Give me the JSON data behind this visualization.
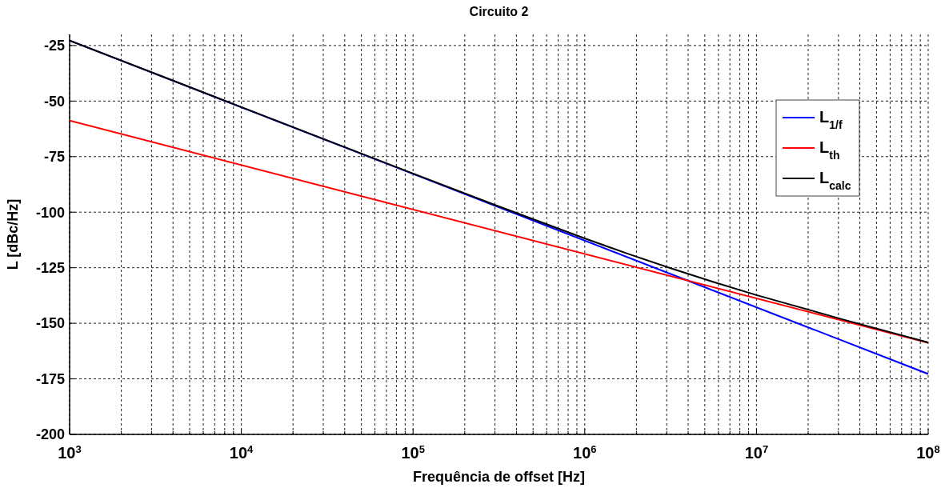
{
  "chart_data": {
    "type": "line",
    "title": "Circuito 2",
    "xlabel": "Frequência de offset [Hz]",
    "ylabel": "L [dBc/Hz]",
    "log": "x",
    "grid": true,
    "legend": "top right",
    "line_style": "solid",
    "xlim": [
      1000,
      100000000
    ],
    "ylim": [
      -200,
      -20
    ],
    "xticks": [
      {
        "value": 1000,
        "label": "10$^{3}$"
      },
      {
        "value": 2000,
        "label": null
      },
      {
        "value": 3000,
        "label": null
      },
      {
        "value": 4000,
        "label": null
      },
      {
        "value": 5000,
        "label": null
      },
      {
        "value": 6000,
        "label": null
      },
      {
        "value": 7000,
        "label": null
      },
      {
        "value": 8000,
        "label": null
      },
      {
        "value": 9000,
        "label": null
      },
      {
        "value": 10000,
        "label": "10$^{4}$"
      },
      {
        "value": 20000,
        "label": null
      },
      {
        "value": 30000,
        "label": null
      },
      {
        "value": 40000,
        "label": null
      },
      {
        "value": 50000,
        "label": null
      },
      {
        "value": 60000,
        "label": null
      },
      {
        "value": 70000,
        "label": null
      },
      {
        "value": 80000,
        "label": null
      },
      {
        "value": 90000,
        "label": null
      },
      {
        "value": 100000,
        "label": "10$^{5}$"
      },
      {
        "value": 200000,
        "label": null
      },
      {
        "value": 300000,
        "label": null
      },
      {
        "value": 400000,
        "label": null
      },
      {
        "value": 500000,
        "label": null
      },
      {
        "value": 600000,
        "label": null
      },
      {
        "value": 700000,
        "label": null
      },
      {
        "value": 800000,
        "label": null
      },
      {
        "value": 900000,
        "label": null
      },
      {
        "value": 1000000,
        "label": "10$^{6}$"
      },
      {
        "value": 2000000,
        "label": null
      },
      {
        "value": 3000000,
        "label": null
      },
      {
        "value": 4000000,
        "label": null
      },
      {
        "value": 5000000,
        "label": null
      },
      {
        "value": 6000000,
        "label": null
      },
      {
        "value": 7000000,
        "label": null
      },
      {
        "value": 8000000,
        "label": null
      },
      {
        "value": 9000000,
        "label": null
      },
      {
        "value": 10000000,
        "label": "10$^{7}$"
      },
      {
        "value": 20000000,
        "label": null
      },
      {
        "value": 30000000,
        "label": null
      },
      {
        "value": 40000000,
        "label": null
      },
      {
        "value": 50000000,
        "label": null
      },
      {
        "value": 60000000,
        "label": null
      },
      {
        "value": 70000000,
        "label": null
      },
      {
        "value": 80000000,
        "label": null
      },
      {
        "value": 90000000,
        "label": null
      },
      {
        "value": 100000000,
        "label": "10$^{8}$"
      }
    ],
    "yticks": [
      -200,
      -175,
      -150,
      -125,
      -100,
      -75,
      -50,
      -25
    ],
    "series": [
      {
        "name": "L$_{1/f}$",
        "color": "#0000ff",
        "x": [
          1000,
          100000000
        ],
        "values": [
          -22.8,
          -172.8
        ]
      },
      {
        "name": "L$_{th}$",
        "color": "#ff0000",
        "x": [
          1000,
          100000000
        ],
        "values": [
          -58.8,
          -158.8
        ]
      },
      {
        "name": "L$_{calc}$",
        "color": "#000000",
        "x": [
          1000,
          10000,
          100000,
          316228,
          1000000,
          1778279,
          3162278,
          5623413,
          10000000,
          31622777,
          100000000
        ],
        "values": [
          -22.8,
          -52.7,
          -82.6,
          -97.4,
          -111.8,
          -118.7,
          -125.2,
          -131.4,
          -137.3,
          -148.2,
          -158.6
        ]
      }
    ]
  }
}
